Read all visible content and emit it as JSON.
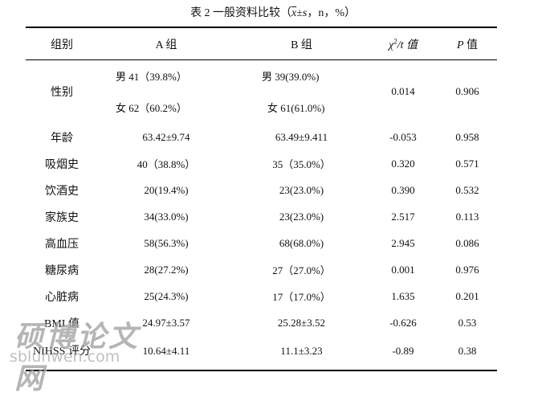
{
  "title": {
    "prefix": "表 2  一般资料比较（",
    "x": "x",
    "pm_s": "±s",
    "suffix": "，n，%）"
  },
  "header": {
    "group": "组别",
    "a": "A 组",
    "b": "B 组",
    "chi_sym": "χ",
    "chi_rest": "/t 值",
    "p_sym": "P",
    "p_rest": " 值"
  },
  "sex_row": {
    "label": "性别",
    "a_male": "男 41（39.8%）",
    "a_female": "女 62（60.2%）",
    "b_male": "男 39(39.0%)",
    "b_female": "女 61(61.0%)",
    "stat": "0.014",
    "p": "0.906"
  },
  "rows": [
    {
      "label": "年龄",
      "a": "63.42±9.74",
      "b": "63.49±9.411",
      "stat": "-0.053",
      "p": "0.958"
    },
    {
      "label": "吸烟史",
      "a": "40（38.8%）",
      "b": "35（35.0%）",
      "stat": "0.320",
      "p": "0.571"
    },
    {
      "label": "饮酒史",
      "a": "20(19.4%)",
      "b": "23(23.0%)",
      "stat": "0.390",
      "p": "0.532"
    },
    {
      "label": "家族史",
      "a": "34(33.0%)",
      "b": "23(23.0%)",
      "stat": "2.517",
      "p": "0.113"
    },
    {
      "label": "高血压",
      "a": "58(56.3%)",
      "b": "68(68.0%)",
      "stat": "2.945",
      "p": "0.086"
    },
    {
      "label": "糖尿病",
      "a": "28(27.2%)",
      "b": "27（27.0%）",
      "stat": "0.001",
      "p": "0.976"
    },
    {
      "label": "心脏病",
      "a": "25(24.3%)",
      "b": "17（17.0%）",
      "stat": "1.635",
      "p": "0.201"
    },
    {
      "label": "BMI 值",
      "a": "24.97±3.57",
      "b": "25.28±3.52",
      "stat": "-0.626",
      "p": "0.53"
    },
    {
      "label": "NIHSS 评分",
      "a": "10.64±4.11",
      "b": "11.1±3.23",
      "stat": "-0.89",
      "p": "0.38"
    }
  ],
  "watermark": {
    "cn": "硕博论文网",
    "en": "sblunwen.com"
  }
}
